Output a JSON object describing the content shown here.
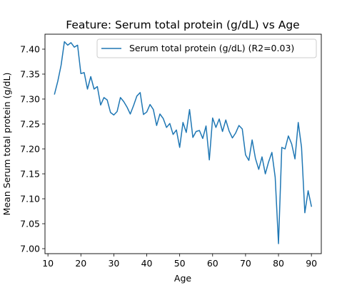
{
  "chart_data": {
    "type": "line",
    "title": "Feature: Serum total protein (g/dL) vs Age",
    "xlabel": "Age",
    "ylabel": "Mean Serum total protein (g/dL)",
    "xlim": [
      9.1,
      93.0
    ],
    "ylim": [
      6.99,
      7.43
    ],
    "xticks": [
      10,
      20,
      30,
      40,
      50,
      60,
      70,
      80,
      90
    ],
    "yticks": [
      7.0,
      7.05,
      7.1,
      7.15,
      7.2,
      7.25,
      7.3,
      7.35,
      7.4
    ],
    "ytick_labels": [
      "7.00",
      "7.05",
      "7.10",
      "7.15",
      "7.20",
      "7.25",
      "7.30",
      "7.35",
      "7.40"
    ],
    "grid": false,
    "legend_position": "top-right",
    "series": [
      {
        "name": "Serum total protein (g/dL) (R2=0.03)",
        "color": "#1f77b4",
        "x": [
          12,
          13,
          14,
          15,
          16,
          17,
          18,
          19,
          20,
          21,
          22,
          23,
          24,
          25,
          26,
          27,
          28,
          29,
          30,
          31,
          32,
          33,
          34,
          35,
          36,
          37,
          38,
          39,
          40,
          41,
          42,
          43,
          44,
          45,
          46,
          47,
          48,
          49,
          50,
          51,
          52,
          53,
          54,
          55,
          56,
          57,
          58,
          59,
          60,
          61,
          62,
          63,
          64,
          65,
          66,
          67,
          68,
          69,
          70,
          71,
          72,
          73,
          74,
          75,
          76,
          77,
          78,
          79,
          80,
          81,
          82,
          83,
          84,
          85,
          86,
          87,
          88,
          89,
          90
        ],
        "y": [
          7.31,
          7.336,
          7.368,
          7.415,
          7.408,
          7.413,
          7.404,
          7.408,
          7.351,
          7.353,
          7.32,
          7.345,
          7.32,
          7.325,
          7.288,
          7.303,
          7.298,
          7.273,
          7.268,
          7.275,
          7.303,
          7.295,
          7.284,
          7.27,
          7.287,
          7.306,
          7.313,
          7.269,
          7.274,
          7.289,
          7.279,
          7.247,
          7.27,
          7.261,
          7.243,
          7.251,
          7.229,
          7.238,
          7.203,
          7.253,
          7.233,
          7.279,
          7.223,
          7.235,
          7.237,
          7.221,
          7.246,
          7.178,
          7.262,
          7.243,
          7.26,
          7.235,
          7.258,
          7.236,
          7.222,
          7.232,
          7.247,
          7.24,
          7.188,
          7.177,
          7.218,
          7.181,
          7.159,
          7.184,
          7.15,
          7.174,
          7.193,
          7.143,
          7.01,
          7.203,
          7.2,
          7.226,
          7.21,
          7.18,
          7.253,
          7.203,
          7.072,
          7.116,
          7.085
        ]
      }
    ]
  }
}
